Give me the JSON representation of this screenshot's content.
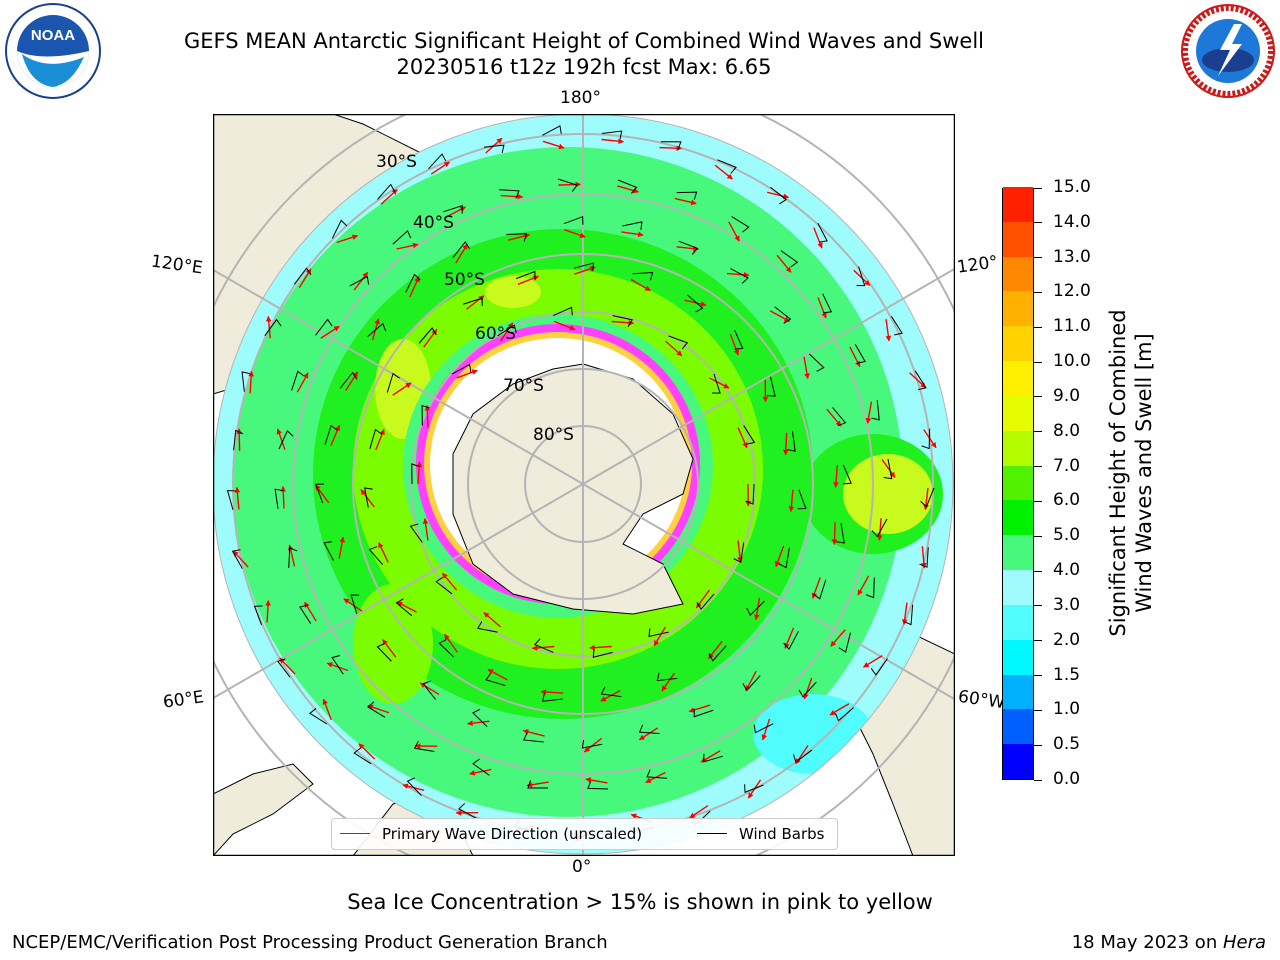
{
  "title_line1": "GEFS MEAN Antarctic Significant Height of Combined Wind Waves and Swell",
  "title_line2": "20230516 t12z 192h fcst   Max: 6.65",
  "logos": {
    "left": "noaa-logo",
    "right": "nws-logo"
  },
  "map": {
    "lon_labels": {
      "top": "180°",
      "bottom": "0°",
      "left_upper": "120°E",
      "left_lower": "60°E",
      "right_upper": "120°",
      "right_lower": "60°W"
    },
    "lat_labels": [
      "30°S",
      "40°S",
      "50°S",
      "60°S",
      "70°S",
      "80°S"
    ],
    "colors": {
      "land": "#efecdc",
      "ocean_cyan": "#9efcfc",
      "ocean_light_green": "#48f87c",
      "ocean_green": "#20f020",
      "ocean_lime": "#7cfc00",
      "ocean_yellowgreen": "#c8fa1e",
      "ice_pink": "#ff40ff",
      "ice_yellow": "#ffd040",
      "arrow": "#ff0000",
      "barb": "#000000",
      "grid": "#b4b4b4"
    }
  },
  "legend": {
    "wave_label": "Primary Wave Direction (unscaled)",
    "barb_label": "Wind Barbs"
  },
  "colorbar": {
    "label_line1": "Significant Height of Combined",
    "label_line2": "Wind Waves and Swell [m]",
    "ticks": [
      "0.0",
      "0.5",
      "1.0",
      "1.5",
      "2.0",
      "3.0",
      "4.0",
      "5.0",
      "6.0",
      "7.0",
      "8.0",
      "9.0",
      "10.0",
      "11.0",
      "12.0",
      "13.0",
      "14.0",
      "15.0"
    ],
    "colors": [
      "#0000ff",
      "#0060ff",
      "#00b0ff",
      "#00f8ff",
      "#50fcfc",
      "#a0fcfc",
      "#48f87c",
      "#00f000",
      "#50f000",
      "#b4fa00",
      "#e6fa00",
      "#fff000",
      "#ffd200",
      "#ffb000",
      "#ff8800",
      "#ff5000",
      "#ff2000",
      "#ff0000"
    ]
  },
  "sea_ice_note": "Sea Ice Concentration > 15% is shown in pink to yellow",
  "footer_left": "NCEP/EMC/Verification Post Processing Product Generation Branch",
  "footer_right_date": "18 May 2023 on ",
  "footer_right_host": "Hera"
}
